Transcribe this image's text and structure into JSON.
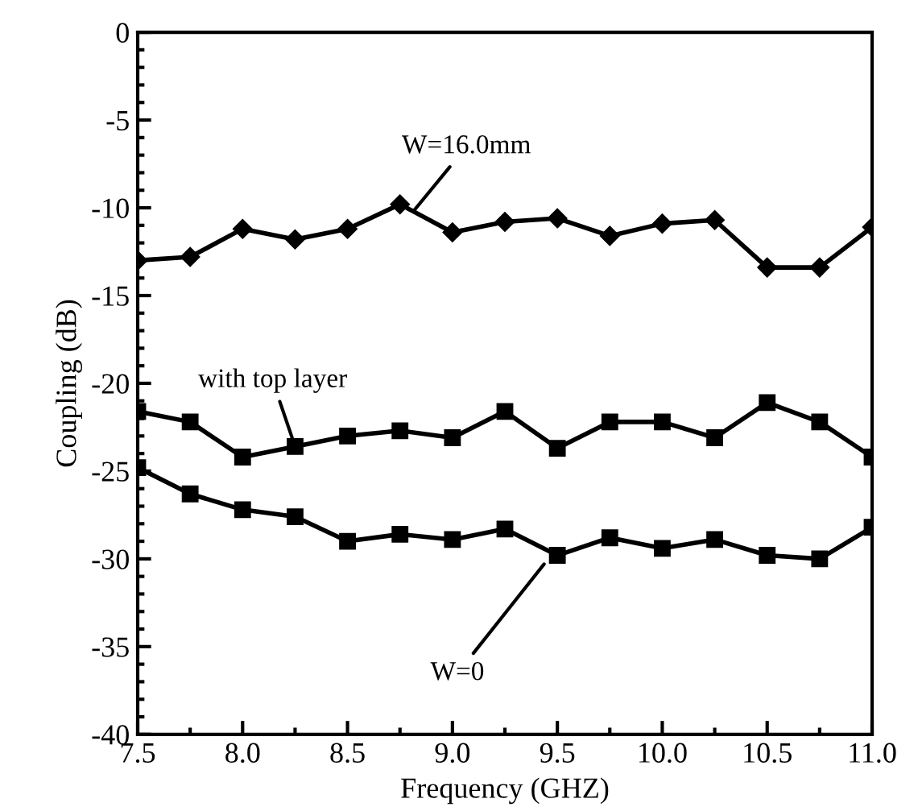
{
  "chart_data": {
    "type": "line",
    "xlabel": "Frequency (GHZ)",
    "ylabel": "Coupling (dB)",
    "x": [
      7.5,
      7.75,
      8.0,
      8.25,
      8.5,
      8.75,
      9.0,
      9.25,
      9.5,
      9.75,
      10.0,
      10.25,
      10.5,
      10.75,
      11.0
    ],
    "xlim": [
      7.5,
      11.0
    ],
    "xticks": [
      {
        "value": 7.5,
        "label": "7.5"
      },
      {
        "value": 8.0,
        "label": "8.0"
      },
      {
        "value": 8.5,
        "label": "8.5"
      },
      {
        "value": 9.0,
        "label": "9.0"
      },
      {
        "value": 9.5,
        "label": "9.5"
      },
      {
        "value": 10.0,
        "label": "10.0"
      },
      {
        "value": 10.5,
        "label": "10.5"
      },
      {
        "value": 11.0,
        "label": "11.0"
      }
    ],
    "ylim": [
      -40,
      0
    ],
    "yticks": [
      -40,
      -35,
      -30,
      -25,
      -20,
      -15,
      -10,
      -5,
      0
    ],
    "grid": false,
    "line_style": "solid",
    "series": [
      {
        "color": "#000000",
        "marker": "diamond",
        "values": [
          -13.0,
          -12.8,
          -11.2,
          -11.8,
          -11.2,
          -9.8,
          -11.4,
          -10.8,
          -10.6,
          -11.6,
          -10.9,
          -10.7,
          -13.4,
          -13.4,
          -11.1
        ]
      },
      {
        "color": "#000000",
        "marker": "square",
        "values": [
          -21.6,
          -22.2,
          -24.2,
          -23.6,
          -23.0,
          -22.7,
          -23.1,
          -21.6,
          -23.7,
          -22.2,
          -22.2,
          -23.1,
          -21.1,
          -22.2,
          -24.2
        ]
      },
      {
        "color": "#000000",
        "marker": "square",
        "values": [
          -24.8,
          -26.3,
          -27.2,
          -27.6,
          -29.0,
          -28.6,
          -28.9,
          -28.3,
          -29.8,
          -28.8,
          -29.4,
          -28.9,
          -29.8,
          -30.0,
          -28.2
        ]
      }
    ],
    "annotations": [
      {
        "text": "W=16.0mm",
        "x": 8.8,
        "y": -10.4
      },
      {
        "text": "with top layer",
        "x": 8.25,
        "y": -23.6
      },
      {
        "text": "W=0",
        "x": 9.45,
        "y": -30.1
      }
    ]
  }
}
